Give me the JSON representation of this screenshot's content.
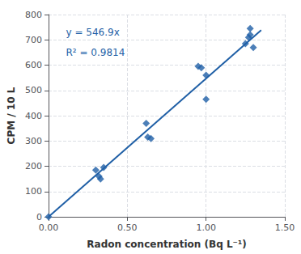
{
  "chart_data": {
    "type": "scatter",
    "xlabel": "Radon concentration (Bq L⁻¹)",
    "ylabel": "CPM / 10 L",
    "color": "#1F5FA6",
    "series": [
      {
        "type": "scatter",
        "marker": "diamond",
        "x": [
          0.0,
          0.3,
          0.32,
          0.33,
          0.35,
          0.62,
          0.63,
          0.65,
          0.95,
          0.97,
          1.0,
          1.0,
          1.25,
          1.27,
          1.28,
          1.28,
          1.3
        ],
        "values": [
          0.0,
          185,
          160,
          150,
          195,
          370,
          315,
          310,
          595,
          590,
          465,
          560,
          685,
          710,
          720,
          745,
          670
        ]
      },
      {
        "type": "line",
        "line_style": "solid",
        "x": [
          0.0,
          1.35
        ],
        "values": [
          0.0,
          738.315
        ]
      }
    ],
    "annotations": [
      "y = 546.9x",
      "R² = 0.9814"
    ],
    "xlim": [
      0.0,
      1.5
    ],
    "ylim": [
      0,
      800
    ],
    "xticks": [
      {
        "value": 0.0,
        "label": "0.00"
      },
      {
        "value": 0.5,
        "label": "0.50"
      },
      {
        "value": 1.0,
        "label": "1.00"
      },
      {
        "value": 1.5,
        "label": "1.50"
      }
    ],
    "yticks": [
      0,
      100,
      200,
      300,
      400,
      500,
      600,
      700,
      800
    ],
    "grid": true
  }
}
